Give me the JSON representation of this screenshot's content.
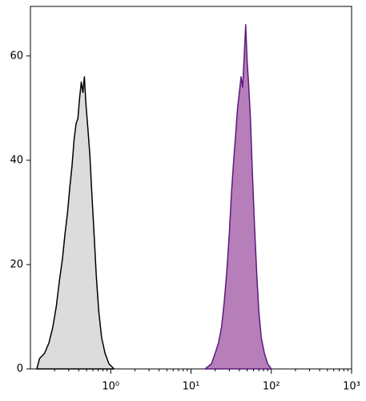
{
  "chart_data": {
    "type": "area",
    "xscale": "log",
    "xlim": [
      0.1,
      1000
    ],
    "ylim": [
      0,
      69.5
    ],
    "xticks": [
      {
        "value": 1,
        "label": "10⁰"
      },
      {
        "value": 10,
        "label": "10¹"
      },
      {
        "value": 100,
        "label": "10²"
      },
      {
        "value": 1000,
        "label": "10³"
      }
    ],
    "xminorticks": [
      0.2,
      0.3,
      0.4,
      0.5,
      0.6,
      0.7,
      0.8,
      0.9,
      2,
      3,
      4,
      5,
      6,
      7,
      8,
      9,
      20,
      30,
      40,
      50,
      60,
      70,
      80,
      90,
      200,
      300,
      400,
      500,
      600,
      700,
      800,
      900
    ],
    "yticks": [
      0,
      20,
      40,
      60
    ],
    "series": [
      {
        "color": "#000000",
        "fill": "#dcdcdc",
        "x": [
          0.12,
          0.13,
          0.15,
          0.17,
          0.19,
          0.21,
          0.23,
          0.25,
          0.27,
          0.29,
          0.31,
          0.33,
          0.35,
          0.37,
          0.39,
          0.41,
          0.43,
          0.45,
          0.47,
          0.49,
          0.52,
          0.55,
          0.58,
          0.62,
          0.66,
          0.71,
          0.77,
          0.85,
          0.95,
          1.1
        ],
        "values": [
          0,
          2,
          3,
          5,
          8,
          12,
          17,
          21,
          26,
          30,
          35,
          39,
          44,
          47,
          48,
          52,
          55,
          53,
          56,
          51,
          46,
          41,
          34,
          26,
          18,
          11,
          6,
          3,
          1,
          0
        ]
      },
      {
        "color": "#5b1a7a",
        "fill": "#b67fba",
        "x": [
          15,
          18,
          20,
          22,
          24,
          26,
          28,
          30,
          32,
          34,
          36,
          38,
          40,
          42,
          44,
          46,
          48,
          50,
          52,
          55,
          58,
          62,
          66,
          70,
          75,
          82,
          90,
          100
        ],
        "values": [
          0,
          1,
          3,
          5,
          8,
          13,
          19,
          26,
          34,
          40,
          45,
          50,
          53,
          56,
          54,
          60,
          66,
          59,
          55,
          48,
          38,
          27,
          18,
          11,
          6,
          3,
          1,
          0
        ]
      }
    ]
  }
}
